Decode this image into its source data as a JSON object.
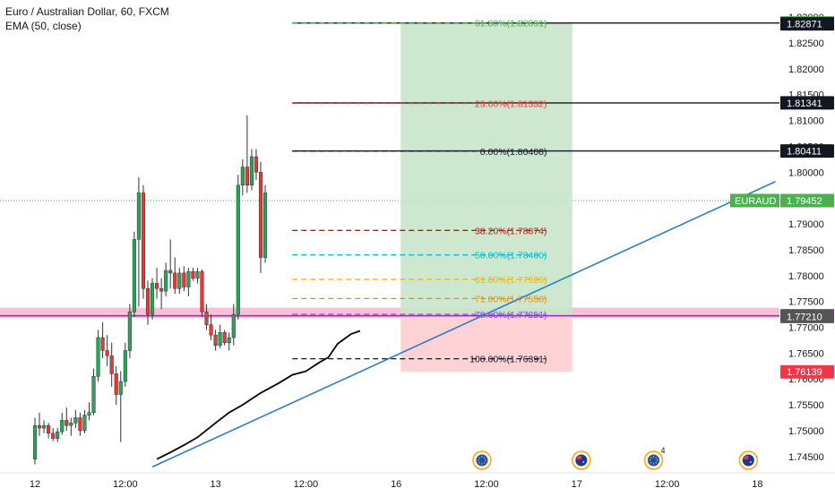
{
  "header": {
    "symbol_title": "Euro / Australian Dollar, 60, FXCM",
    "indicator": "EMA (50, close)"
  },
  "chart_data": {
    "type": "candlestick",
    "symbol": "EURAUD",
    "ylim": [
      1.7415,
      1.8302
    ],
    "y_ticks": [
      1.745,
      1.75,
      1.755,
      1.76,
      1.765,
      1.77,
      1.775,
      1.78,
      1.785,
      1.79,
      1.795,
      1.8,
      1.805,
      1.81,
      1.815,
      1.82,
      1.825,
      1.83
    ],
    "y_tick_labels": [
      "1.74500",
      "1.75000",
      "1.75500",
      "1.76000",
      "1.76500",
      "1.77000",
      "1.77500",
      "1.78000",
      "1.78500",
      "1.79000",
      "1.79500",
      "1.80000",
      "1.80500",
      "1.81000",
      "1.81500",
      "1.82000",
      "1.82500",
      "1.83000"
    ],
    "x_labels": [
      {
        "i": 0,
        "label": "12"
      },
      {
        "i": 20,
        "label": "12:00"
      },
      {
        "i": 40,
        "label": "13"
      },
      {
        "i": 60,
        "label": "12:00"
      },
      {
        "i": 80,
        "label": "16"
      },
      {
        "i": 100,
        "label": "12:00"
      },
      {
        "i": 120,
        "label": "17"
      },
      {
        "i": 140,
        "label": "12:00"
      },
      {
        "i": 160,
        "label": "18"
      }
    ],
    "candles": [
      [
        1.7445,
        1.7525,
        1.7435,
        1.751
      ],
      [
        1.751,
        1.7535,
        1.749,
        1.7505
      ],
      [
        1.7505,
        1.752,
        1.7495,
        1.751
      ],
      [
        1.751,
        1.7515,
        1.7485,
        1.7495
      ],
      [
        1.7495,
        1.7505,
        1.748,
        1.7485
      ],
      [
        1.7485,
        1.7505,
        1.7478,
        1.7498
      ],
      [
        1.7498,
        1.7535,
        1.7492,
        1.752
      ],
      [
        1.752,
        1.7545,
        1.75,
        1.751
      ],
      [
        1.751,
        1.7525,
        1.749,
        1.7515
      ],
      [
        1.7515,
        1.754,
        1.7505,
        1.7525
      ],
      [
        1.7525,
        1.7535,
        1.749,
        1.75
      ],
      [
        1.75,
        1.754,
        1.7495,
        1.753
      ],
      [
        1.753,
        1.7555,
        1.752,
        1.7535
      ],
      [
        1.7535,
        1.762,
        1.753,
        1.7605
      ],
      [
        1.7605,
        1.7695,
        1.7595,
        1.768
      ],
      [
        1.768,
        1.771,
        1.764,
        1.7655
      ],
      [
        1.7655,
        1.7685,
        1.7625,
        1.7645
      ],
      [
        1.7645,
        1.767,
        1.7585,
        1.761
      ],
      [
        1.761,
        1.7625,
        1.755,
        1.757
      ],
      [
        1.757,
        1.7615,
        1.7478,
        1.7595
      ],
      [
        1.7595,
        1.767,
        1.7585,
        1.7655
      ],
      [
        1.7655,
        1.7745,
        1.764,
        1.773
      ],
      [
        1.773,
        1.7885,
        1.772,
        1.787
      ],
      [
        1.787,
        1.799,
        1.774,
        1.796
      ],
      [
        1.796,
        1.7975,
        1.7755,
        1.7775
      ],
      [
        1.7775,
        1.779,
        1.7705,
        1.7725
      ],
      [
        1.7725,
        1.7795,
        1.7715,
        1.7785
      ],
      [
        1.7785,
        1.7815,
        1.7755,
        1.7775
      ],
      [
        1.7775,
        1.7795,
        1.7735,
        1.777
      ],
      [
        1.777,
        1.7825,
        1.776,
        1.781
      ],
      [
        1.781,
        1.787,
        1.7775,
        1.7805
      ],
      [
        1.7805,
        1.7835,
        1.7765,
        1.7775
      ],
      [
        1.7775,
        1.7815,
        1.7765,
        1.7805
      ],
      [
        1.7805,
        1.7818,
        1.777,
        1.7778
      ],
      [
        1.7778,
        1.7815,
        1.776,
        1.7808
      ],
      [
        1.7808,
        1.7815,
        1.779,
        1.7795
      ],
      [
        1.7795,
        1.7815,
        1.7785,
        1.7808
      ],
      [
        1.7808,
        1.7812,
        1.772,
        1.773
      ],
      [
        1.773,
        1.7745,
        1.7695,
        1.7705
      ],
      [
        1.7705,
        1.7725,
        1.7675,
        1.7685
      ],
      [
        1.7685,
        1.7695,
        1.7655,
        1.7665
      ],
      [
        1.7665,
        1.7705,
        1.766,
        1.769
      ],
      [
        1.769,
        1.7695,
        1.7665,
        1.767
      ],
      [
        1.767,
        1.769,
        1.7655,
        1.768
      ],
      [
        1.768,
        1.7745,
        1.7665,
        1.7725
      ],
      [
        1.7725,
        1.7995,
        1.7715,
        1.7975
      ],
      [
        1.7975,
        1.8025,
        1.7955,
        1.801
      ],
      [
        1.801,
        1.811,
        1.796,
        1.7975
      ],
      [
        1.7975,
        1.8045,
        1.7965,
        1.803
      ],
      [
        1.803,
        1.8045,
        1.7985,
        1.8
      ],
      [
        1.8,
        1.802,
        1.7805,
        1.7835
      ],
      [
        1.7835,
        1.7975,
        1.7825,
        1.796
      ]
    ],
    "ema_50": [
      {
        "i": 27,
        "v": 1.7445
      },
      {
        "i": 30,
        "v": 1.7458
      },
      {
        "i": 33,
        "v": 1.7472
      },
      {
        "i": 36,
        "v": 1.7487
      },
      {
        "i": 40,
        "v": 1.7515
      },
      {
        "i": 43,
        "v": 1.7535
      },
      {
        "i": 46,
        "v": 1.755
      },
      {
        "i": 50,
        "v": 1.7573
      },
      {
        "i": 54,
        "v": 1.7592
      },
      {
        "i": 57,
        "v": 1.7608
      },
      {
        "i": 60,
        "v": 1.7615
      },
      {
        "i": 63,
        "v": 1.7632
      },
      {
        "i": 65,
        "v": 1.7642
      },
      {
        "i": 67,
        "v": 1.7668
      },
      {
        "i": 70,
        "v": 1.7687
      },
      {
        "i": 72,
        "v": 1.7693
      }
    ],
    "trendline": [
      {
        "i": 26,
        "v": 1.743
      },
      {
        "i": 164,
        "v": 1.7982
      }
    ],
    "current_price": {
      "label": "EURAUD",
      "value": "1.79452",
      "price": 1.79452
    },
    "fib_retracement": {
      "levels": [
        {
          "price": 1.82891,
          "label": "61.80%(1.82891)",
          "color": "#4caf50"
        },
        {
          "price": 1.81332,
          "label": "23.00%(1.81332)",
          "color": "#f23645"
        },
        {
          "price": 1.80408,
          "label": "0.00%(1.80408)",
          "color": "#131722"
        },
        {
          "price": 1.78874,
          "label": "38.20%(1.78874)",
          "color": "#b71c1c"
        },
        {
          "price": 1.784,
          "label": "50.00%(1.78400)",
          "color": "#00bcd4"
        },
        {
          "price": 1.77926,
          "label": "61.80%(1.77926)",
          "color": "#f7b500"
        },
        {
          "price": 1.77556,
          "label": "71.00%(1.77556)",
          "color": "#ef8c00"
        },
        {
          "price": 1.77251,
          "label": "78.60%(1.77251)",
          "color": "#7e57c2"
        },
        {
          "price": 1.76391,
          "label": "100.00%(1.76391)",
          "color": "#131722"
        }
      ]
    },
    "horizontal_lines": [
      {
        "price": 1.82887,
        "color": "#131722"
      },
      {
        "price": 1.81341,
        "color": "#131722"
      },
      {
        "price": 1.80411,
        "color": "#131722"
      },
      {
        "price": 1.77223,
        "color": "#9c27b0"
      }
    ],
    "price_labels": [
      {
        "value": "1.82887",
        "price": 1.82887,
        "bg": "#4caf50",
        "fg": "#ffffff"
      },
      {
        "value": "1.82871",
        "price": 1.82871,
        "bg": "#131722",
        "fg": "#ffffff"
      },
      {
        "value": "1.81341",
        "price": 1.81341,
        "bg": "#131722",
        "fg": "#ffffff"
      },
      {
        "value": "1.80411",
        "price": 1.80411,
        "bg": "#131722",
        "fg": "#ffffff"
      },
      {
        "value": "1.79452",
        "price": 1.79452,
        "bg": "#4caf50",
        "fg": "#ffffff"
      },
      {
        "value": "1.77223",
        "price": 1.77223,
        "bg": "#9c27b0",
        "fg": "#ffffff"
      },
      {
        "value": "1.77210",
        "price": 1.7721,
        "bg": "#555555",
        "fg": "#ffffff"
      },
      {
        "value": "1.76139",
        "price": 1.76139,
        "bg": "#f23645",
        "fg": "#ffffff"
      }
    ],
    "position": {
      "entry": 1.77223,
      "target": 1.82887,
      "stop": 1.76139,
      "i_start": 81,
      "i_end": 119,
      "profit_color": "#c8e6c9",
      "loss_color": "#ffcdd2"
    },
    "support_zone": {
      "top": 1.7738,
      "bottom": 1.7718,
      "color": "#f48fb1"
    },
    "event_markers": [
      {
        "i": 99,
        "type": "eu-flag-icon",
        "badge": ""
      },
      {
        "i": 121,
        "type": "au-flag-icon",
        "badge": ""
      },
      {
        "i": 137,
        "type": "eu-flag-icon",
        "badge": "4"
      },
      {
        "i": 158,
        "type": "au-flag-icon",
        "badge": ""
      }
    ],
    "colors": {
      "up": "#26a65b",
      "down": "#e53935",
      "ema": "#000000",
      "trendline": "#2e7ec8",
      "current_line": "#4caf50"
    }
  }
}
